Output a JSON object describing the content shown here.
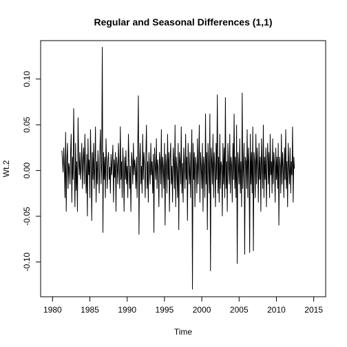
{
  "chart_data": {
    "type": "line",
    "title": "Regular and Seasonal Differences (1,1)",
    "xlabel": "Time",
    "ylabel": "Wt.2",
    "xlim": [
      1978.4,
      2016.6
    ],
    "ylim": [
      -0.138,
      0.142
    ],
    "x_ticks": [
      1980,
      1985,
      1990,
      1995,
      2000,
      2005,
      2010,
      2015
    ],
    "x_tick_labels": [
      "1980",
      "1985",
      "1990",
      "1995",
      "2000",
      "2005",
      "2010",
      "2015"
    ],
    "y_ticks": [
      -0.1,
      -0.05,
      0.0,
      0.05,
      0.1
    ],
    "y_tick_labels": [
      "-0.10",
      "-0.05",
      "0.00",
      "0.05",
      "0.10"
    ],
    "grid": false,
    "series": [
      {
        "x_start": 1981.25,
        "x_step": 0.08333,
        "values": [
          0.022,
          0.01,
          -0.002,
          0.025,
          0.005,
          -0.03,
          0.042,
          -0.045,
          0.012,
          0.03,
          -0.02,
          0.008,
          0.003,
          -0.015,
          0.02,
          0.04,
          -0.035,
          0.015,
          -0.01,
          0.068,
          0.002,
          -0.04,
          0.03,
          -0.022,
          0.01,
          -0.045,
          0.058,
          0.015,
          -0.005,
          0.02,
          -0.01,
          0.005,
          0.03,
          -0.02,
          0.012,
          0.025,
          -0.015,
          0.04,
          0.002,
          -0.025,
          0.018,
          -0.05,
          0.035,
          -0.005,
          0.012,
          -0.03,
          0.045,
          0.01,
          -0.055,
          0.02,
          -0.01,
          0.03,
          -0.02,
          0.005,
          0.048,
          -0.035,
          0.01,
          -0.015,
          0.022,
          0.002,
          -0.025,
          0.02,
          0.045,
          -0.015,
          0.008,
          0.135,
          -0.068,
          0.02,
          -0.01,
          0.015,
          -0.03,
          0.035,
          0.005,
          -0.02,
          0.012,
          0.02,
          -0.01,
          0.004,
          -0.025,
          0.018,
          -0.005,
          0.01,
          0.028,
          -0.035,
          0.012,
          -0.008,
          0.02,
          -0.045,
          0.015,
          0.005,
          -0.015,
          0.03,
          0.002,
          -0.02,
          0.048,
          -0.01,
          0.01,
          -0.03,
          0.025,
          0.005,
          -0.045,
          0.015,
          -0.01,
          0.022,
          -0.015,
          0.005,
          -0.03,
          0.04,
          0.01,
          -0.02,
          0.005,
          -0.045,
          0.02,
          0.01,
          -0.015,
          0.03,
          -0.005,
          0.012,
          0.002,
          -0.02,
          0.015,
          -0.03,
          0.025,
          0.082,
          -0.07,
          0.01,
          0.03,
          -0.015,
          0.005,
          -0.025,
          0.04,
          -0.01,
          0.02,
          0.005,
          -0.03,
          0.015,
          0.05,
          -0.02,
          0.01,
          -0.035,
          0.02,
          0.002,
          -0.015,
          0.03,
          -0.005,
          0.01,
          -0.025,
          0.018,
          -0.068,
          0.025,
          0.005,
          -0.01,
          0.035,
          -0.02,
          0.012,
          0.002,
          -0.04,
          0.02,
          0.01,
          -0.015,
          0.045,
          -0.03,
          0.015,
          0.005,
          -0.02,
          0.03,
          -0.06,
          0.018,
          0.005,
          -0.025,
          0.04,
          -0.01,
          0.02,
          -0.045,
          0.012,
          0.03,
          -0.015,
          0.005,
          -0.035,
          0.025,
          0.01,
          -0.02,
          0.05,
          -0.04,
          0.015,
          0.002,
          -0.03,
          0.03,
          -0.065,
          0.02,
          0.01,
          -0.015,
          0.048,
          -0.025,
          0.008,
          -0.035,
          0.025,
          0.005,
          -0.02,
          0.04,
          -0.01,
          0.015,
          -0.055,
          0.03,
          0.005,
          -0.015,
          0.02,
          -0.03,
          0.01,
          0.045,
          -0.13,
          0.03,
          -0.01,
          0.02,
          -0.04,
          0.015,
          0.005,
          -0.025,
          0.035,
          -0.015,
          0.01,
          0.05,
          -0.035,
          0.02,
          0.005,
          -0.02,
          0.03,
          -0.045,
          0.015,
          0.005,
          -0.03,
          0.062,
          -0.015,
          0.02,
          -0.065,
          0.03,
          0.005,
          -0.025,
          0.062,
          -0.11,
          0.025,
          0.01,
          -0.015,
          0.04,
          -0.03,
          0.02,
          0.005,
          -0.04,
          0.03,
          -0.01,
          0.083,
          -0.025,
          0.015,
          -0.035,
          0.04,
          -0.02,
          0.01,
          0.005,
          -0.05,
          0.03,
          -0.015,
          0.025,
          -0.03,
          0.08,
          -0.02,
          0.01,
          -0.045,
          0.03,
          0.005,
          -0.015,
          0.04,
          -0.025,
          0.015,
          0.005,
          -0.035,
          0.03,
          -0.01,
          0.062,
          -0.02,
          0.015,
          -0.03,
          0.05,
          -0.102,
          0.02,
          0.005,
          -0.015,
          0.035,
          -0.025,
          0.01,
          -0.04,
          0.085,
          -0.02,
          0.005,
          0.03,
          -0.092,
          0.015,
          0.01,
          -0.02,
          0.045,
          -0.03,
          0.025,
          0.005,
          -0.09,
          0.04,
          -0.015,
          0.02,
          -0.025,
          0.048,
          -0.088,
          0.02,
          0.01,
          -0.03,
          0.04,
          -0.015,
          0.025,
          0.005,
          -0.035,
          0.03,
          -0.01,
          0.015,
          -0.045,
          0.035,
          0.005,
          -0.02,
          0.05,
          -0.03,
          0.015,
          -0.01,
          0.025,
          -0.04,
          0.01,
          0.03,
          -0.015,
          0.02,
          -0.03,
          0.04,
          -0.005,
          0.01,
          -0.025,
          0.035,
          -0.015,
          0.02,
          0.005,
          -0.035,
          0.025,
          -0.01,
          0.015,
          -0.02,
          0.03,
          -0.06,
          0.015,
          0.005,
          -0.025,
          0.04,
          -0.015,
          0.02,
          0.002,
          -0.03,
          0.025,
          -0.01,
          0.045,
          -0.02,
          0.01,
          -0.04,
          0.03,
          0.005,
          -0.015,
          0.025,
          -0.025,
          0.01,
          -0.005,
          0.048,
          -0.035,
          0.015,
          0.002
        ]
      }
    ]
  }
}
